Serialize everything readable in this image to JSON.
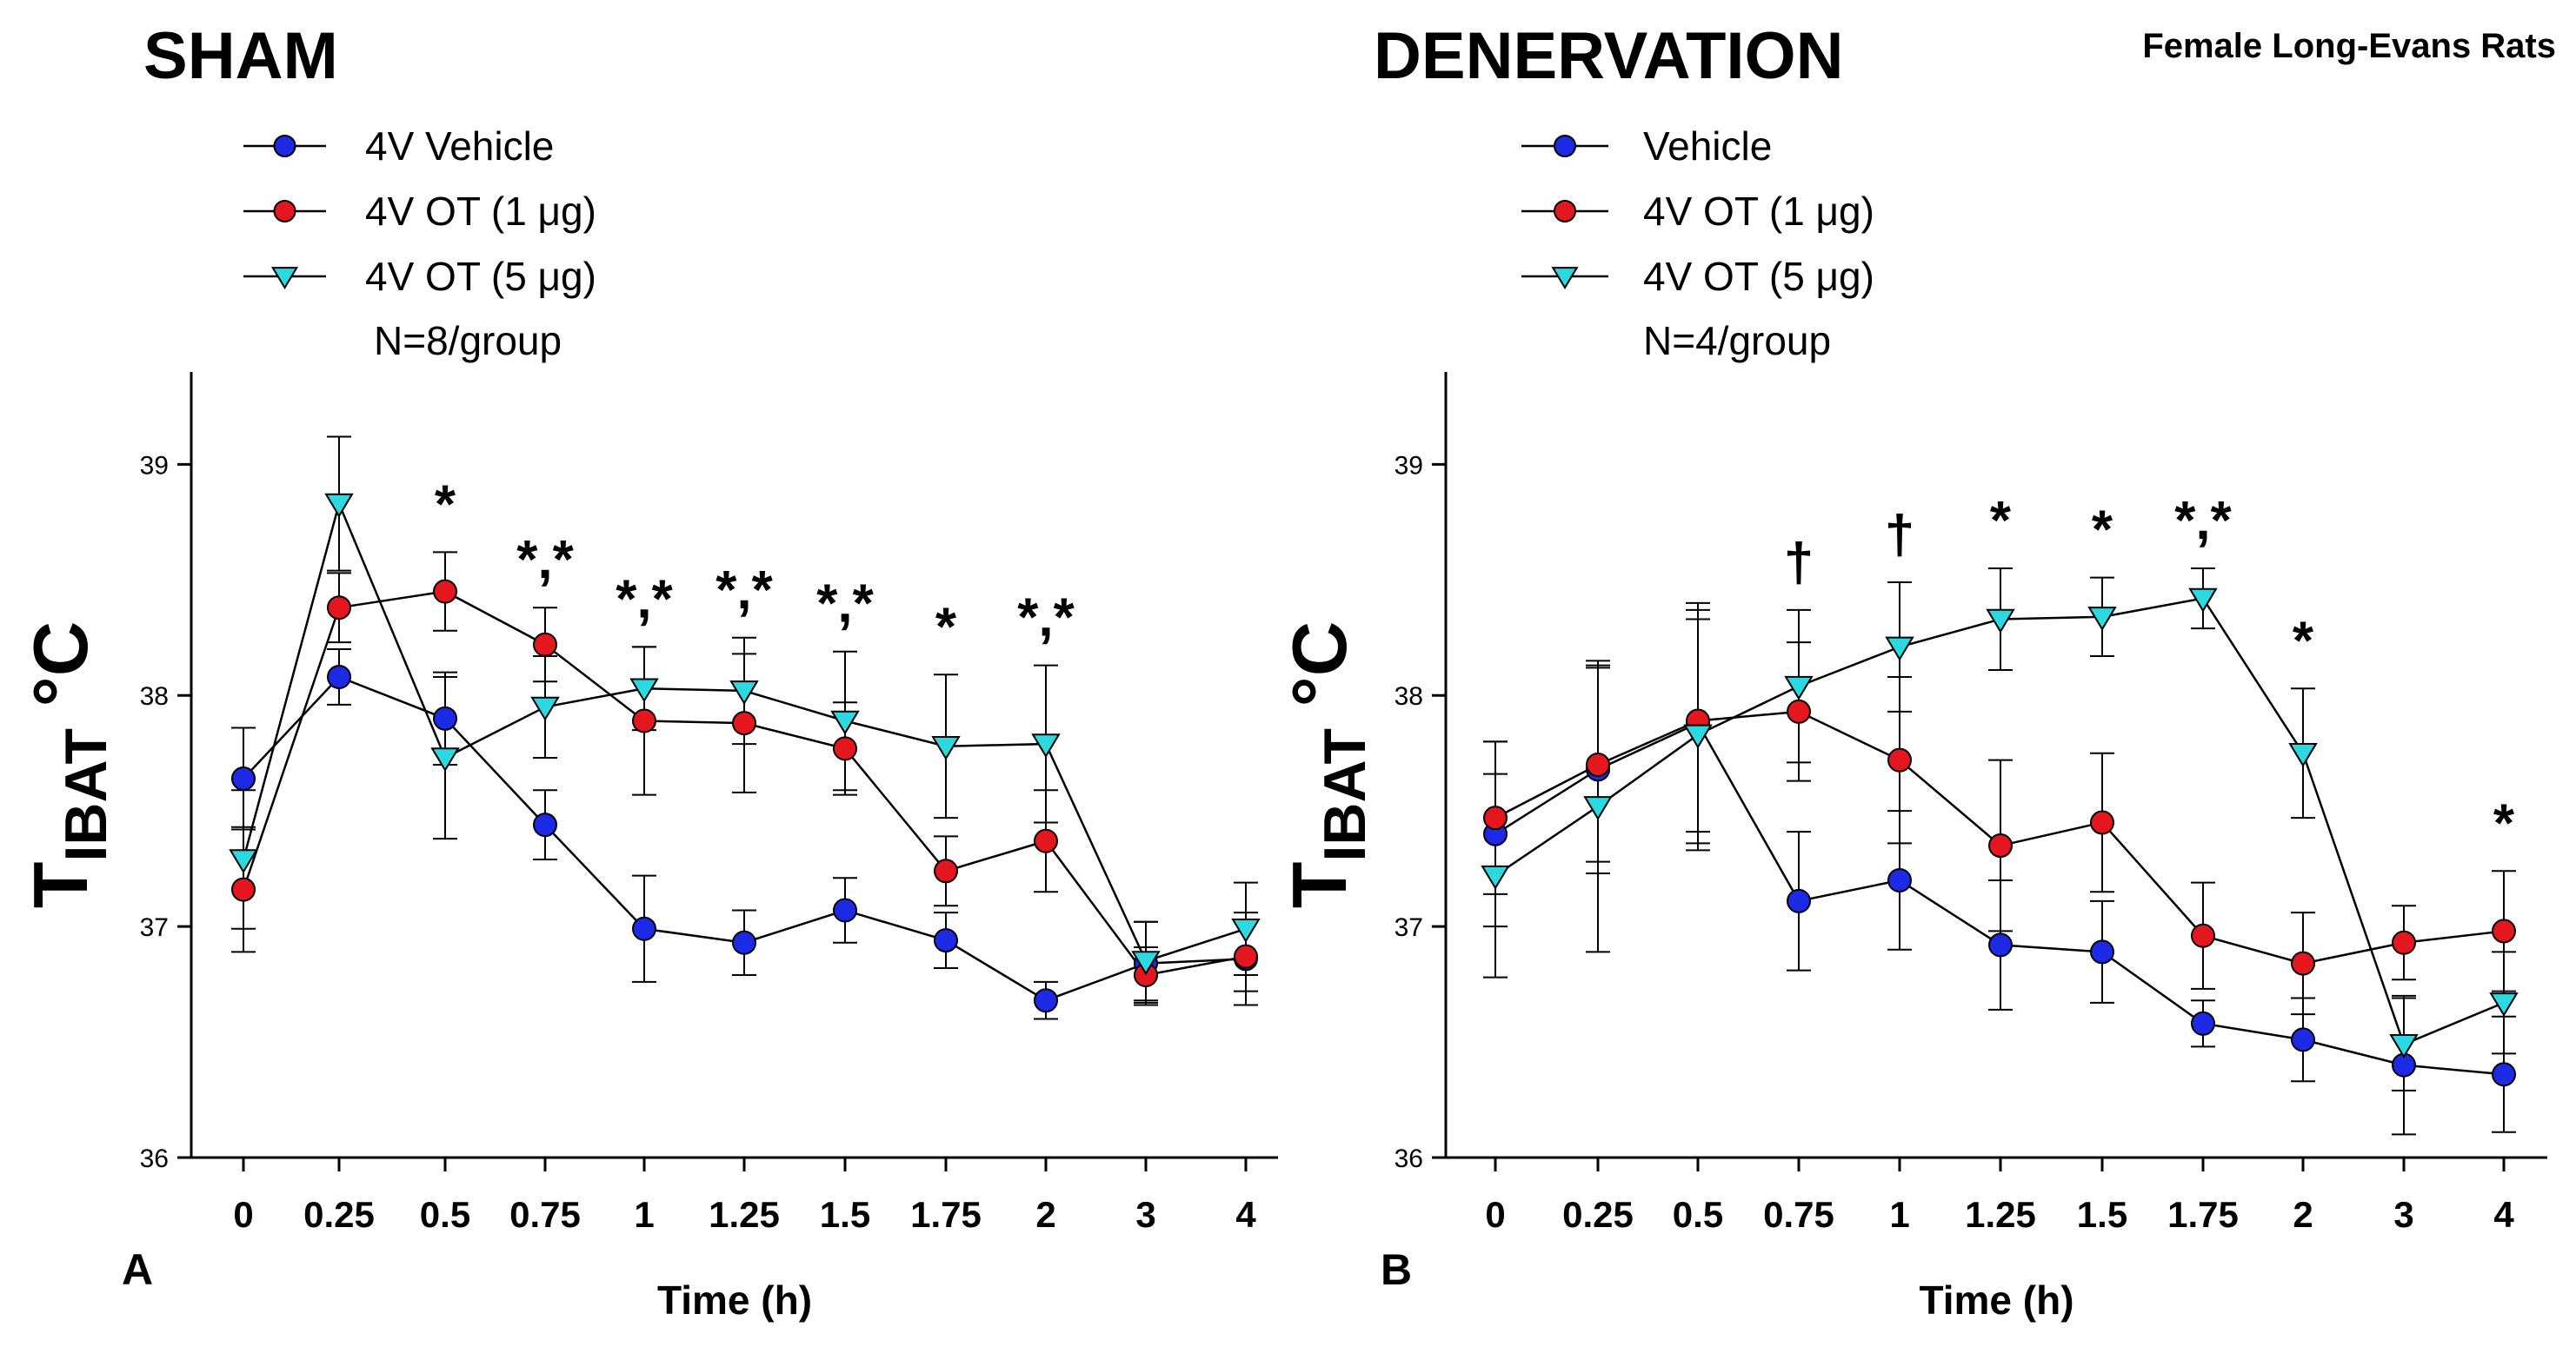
{
  "figure": {
    "corner_label": "Female Long-Evans Rats"
  },
  "chart_data": [
    {
      "type": "line",
      "panel_letter": "A",
      "title": "SHAM",
      "xlabel": "Time (h)",
      "ylabel": {
        "main": "T",
        "subscript": "IBAT",
        "unit": " °C"
      },
      "ylim": [
        36,
        39.4
      ],
      "yticks": [
        "36",
        "37",
        "38",
        "39"
      ],
      "categories": [
        "0",
        "0.25",
        "0.5",
        "0.75",
        "1",
        "1.25",
        "1.5",
        "1.75",
        "2",
        "3",
        "4"
      ],
      "legend": {
        "entries": [
          "4V Vehicle",
          "4V OT (1 μg)",
          "4V OT (5 μg)"
        ],
        "note": "N=8/group"
      },
      "series": [
        {
          "name": "4V Vehicle",
          "color": "#1c2ae6",
          "marker": "circle",
          "values": [
            37.64,
            38.08,
            37.9,
            37.44,
            36.99,
            36.93,
            37.07,
            36.94,
            36.68,
            36.84,
            36.86
          ],
          "errors": [
            0.22,
            0.12,
            0.2,
            0.15,
            0.23,
            0.14,
            0.14,
            0.12,
            0.08,
            0.18,
            0.2
          ]
        },
        {
          "name": "4V OT (1 μg)",
          "color": "#e4161e",
          "marker": "circle",
          "values": [
            37.16,
            38.38,
            38.45,
            38.22,
            37.89,
            37.88,
            37.77,
            37.24,
            37.37,
            36.79,
            36.87
          ],
          "errors": [
            0.27,
            0.15,
            0.17,
            0.16,
            0.32,
            0.3,
            0.2,
            0.15,
            0.22,
            0.12,
            0.15
          ]
        },
        {
          "name": "4V OT (5 μg)",
          "color": "#2cd9e0",
          "marker": "triangle-down",
          "values": [
            37.29,
            38.83,
            37.73,
            37.95,
            38.03,
            38.02,
            37.89,
            37.78,
            37.79,
            36.85,
            36.99
          ],
          "errors": [
            0.3,
            0.29,
            0.35,
            0.22,
            0.18,
            0.23,
            0.3,
            0.31,
            0.34,
            0.17,
            0.2
          ]
        }
      ],
      "significance": [
        "",
        "",
        "*",
        "*,*",
        "*,*",
        "*,*",
        "*,*",
        "*",
        "*,*",
        "",
        ""
      ]
    },
    {
      "type": "line",
      "panel_letter": "B",
      "title": "DENERVATION",
      "xlabel": "Time (h)",
      "ylabel": {
        "main": "T",
        "subscript": "IBAT",
        "unit": " °C"
      },
      "ylim": [
        36,
        39.4
      ],
      "yticks": [
        "36",
        "37",
        "38",
        "39"
      ],
      "categories": [
        "0",
        "0.25",
        "0.5",
        "0.75",
        "1",
        "1.25",
        "1.5",
        "1.75",
        "2",
        "3",
        "4"
      ],
      "legend": {
        "entries": [
          "Vehicle",
          "4V OT (1 μg)",
          "4V OT (5 μg)"
        ],
        "note": "N=4/group"
      },
      "series": [
        {
          "name": "Vehicle",
          "color": "#1c2ae6",
          "marker": "circle",
          "values": [
            37.4,
            37.68,
            37.88,
            37.11,
            37.2,
            36.92,
            36.89,
            36.58,
            36.51,
            36.4,
            36.36
          ],
          "errors": [
            0.4,
            0.45,
            0.52,
            0.3,
            0.3,
            0.28,
            0.22,
            0.1,
            0.18,
            0.3,
            0.25
          ]
        },
        {
          "name": "4V OT (1 μg)",
          "color": "#e4161e",
          "marker": "circle",
          "values": [
            37.47,
            37.7,
            37.89,
            37.93,
            37.72,
            37.35,
            37.45,
            36.96,
            36.84,
            36.93,
            36.98
          ],
          "errors": [
            0.33,
            0.42,
            0.48,
            0.3,
            0.36,
            0.37,
            0.3,
            0.23,
            0.22,
            0.16,
            0.26
          ]
        },
        {
          "name": "4V OT (5 μg)",
          "color": "#2cd9e0",
          "marker": "triangle-down",
          "values": [
            37.22,
            37.52,
            37.83,
            38.04,
            38.21,
            38.33,
            38.34,
            38.42,
            37.75,
            36.49,
            36.67
          ],
          "errors": [
            0.44,
            0.63,
            0.5,
            0.33,
            0.28,
            0.22,
            0.17,
            0.13,
            0.28,
            0.2,
            0.22
          ]
        }
      ],
      "significance": [
        "",
        "",
        "",
        "†",
        "†",
        "*",
        "*",
        "*,*",
        "*",
        "",
        "*"
      ]
    }
  ]
}
